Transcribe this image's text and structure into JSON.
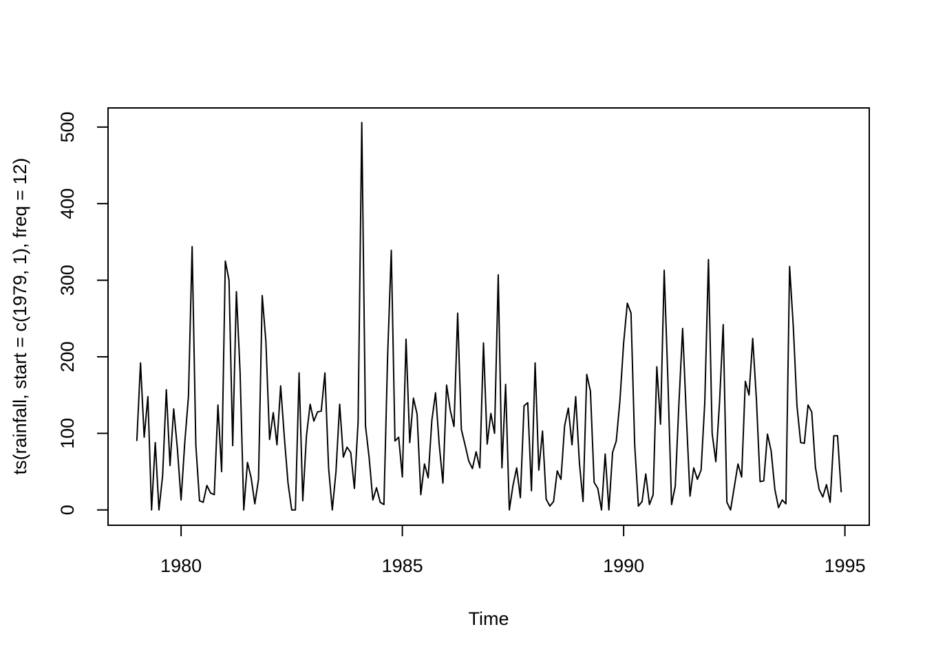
{
  "chart_data": {
    "type": "line",
    "title": "",
    "xlabel": "Time",
    "ylabel": "ts(rainfall, start = c(1979, 1), freq = 12)",
    "start": [
      1979,
      1
    ],
    "frequency": 12,
    "xlim": [
      1978.35,
      1995.55
    ],
    "ylim": [
      -20,
      525
    ],
    "xticks": [
      1980,
      1985,
      1990,
      1995
    ],
    "xtick_labels": [
      "1980",
      "1985",
      "1990",
      "1995"
    ],
    "yticks": [
      0,
      100,
      200,
      300,
      400,
      500
    ],
    "ytick_labels": [
      "0",
      "100",
      "200",
      "300",
      "400",
      "500"
    ],
    "grid": false,
    "legend": "none",
    "line_color": "#000000",
    "series": [
      {
        "values": [
          90,
          192,
          95,
          148,
          0,
          88,
          0,
          45,
          157,
          58,
          132,
          80,
          13,
          88,
          148,
          344,
          85,
          12,
          10,
          32,
          22,
          20,
          137,
          50,
          325,
          300,
          84,
          285,
          180,
          0,
          62,
          42,
          8,
          40,
          280,
          220,
          92,
          127,
          85,
          162,
          95,
          35,
          0,
          0,
          179,
          12,
          97,
          138,
          116,
          128,
          129,
          179,
          55,
          0,
          50,
          138,
          69,
          82,
          75,
          28,
          115,
          506,
          110,
          68,
          13,
          29,
          10,
          7,
          200,
          339,
          90,
          95,
          43,
          223,
          88,
          146,
          125,
          20,
          60,
          42,
          117,
          153,
          85,
          35,
          163,
          130,
          109,
          257,
          105,
          85,
          64,
          54,
          76,
          55,
          218,
          86,
          126,
          100,
          307,
          55,
          164,
          0,
          32,
          55,
          16,
          136,
          140,
          25,
          192,
          52,
          103,
          14,
          5,
          11,
          51,
          40,
          110,
          133,
          85,
          148,
          62,
          11,
          177,
          155,
          36,
          28,
          0,
          73,
          0,
          75,
          90,
          143,
          218,
          270,
          257,
          85,
          5,
          11,
          47,
          7,
          20,
          187,
          112,
          313,
          170,
          7,
          31,
          140,
          237,
          123,
          18,
          55,
          40,
          52,
          140,
          327,
          100,
          63,
          140,
          242,
          10,
          0,
          30,
          60,
          43,
          168,
          150,
          224,
          145,
          37,
          38,
          99,
          77,
          27,
          3,
          13,
          8,
          318,
          240,
          136,
          88,
          87,
          137,
          128,
          56,
          27,
          17,
          33,
          10,
          97,
          97,
          23
        ]
      }
    ]
  }
}
